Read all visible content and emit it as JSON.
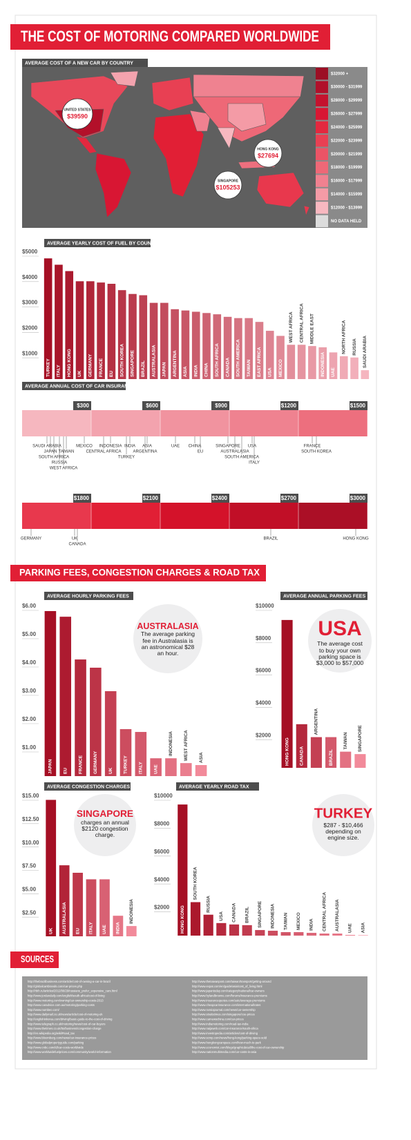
{
  "header": {
    "title": "THE COST OF MOTORING COMPARED WORLDWIDE"
  },
  "sections": {
    "parking": "PARKING FEES, CONGESTION CHARGES & ROAD TAX",
    "sources": "SOURCES"
  },
  "chart_data": [
    {
      "type": "map",
      "title": "AVERAGE COST OF A NEW CAR BY COUNTRY",
      "legend": [
        {
          "name": "$32000 +",
          "color": "#9c0f25"
        },
        {
          "name": "$30000 - $31999",
          "color": "#b0102a"
        },
        {
          "name": "$28000 - $29999",
          "color": "#c4122e"
        },
        {
          "name": "$26000 - $27999",
          "color": "#d81633"
        },
        {
          "name": "$24000 - $25999",
          "color": "#e3283f"
        },
        {
          "name": "$22000 - $23999",
          "color": "#e84053"
        },
        {
          "name": "$20000 - $21999",
          "color": "#eb5466"
        },
        {
          "name": "$18000 - $19999",
          "color": "#ee6877"
        },
        {
          "name": "$16000 - $17999",
          "color": "#f08190"
        },
        {
          "name": "$14000 - $15999",
          "color": "#f49ba6"
        },
        {
          "name": "$12000 - $13999",
          "color": "#f8b8c0"
        },
        {
          "name": "NO DATA HELD",
          "color": "#dcdcdc"
        }
      ],
      "callouts": [
        {
          "name": "UNITED STATES",
          "value": 39590,
          "label": "$39590"
        },
        {
          "name": "HONG KONG",
          "value": 27694,
          "label": "$27694"
        },
        {
          "name": "SINGAPORE",
          "value": 105253,
          "label": "$105253"
        }
      ]
    },
    {
      "type": "bar",
      "title": "AVERAGE YEARLY COST OF FUEL BY COUNTRY",
      "categories": [
        "TURKEY",
        "ITALY",
        "HONG KONG",
        "UK",
        "GERMANY",
        "FRANCE",
        "EU",
        "SOUTH KOREA",
        "SINGAPORE",
        "BRAZIL",
        "AUSTRALASIA",
        "JAPAN",
        "ARGENTINA",
        "ASIA",
        "INDIA",
        "CHINA",
        "SOUTH AFRICA",
        "CANADA",
        "SOUTH AMERICA",
        "TAIWAN",
        "EAST AFRICA",
        "USA",
        "MEXICO",
        "WEST AFRICA",
        "CENTRAL AFRICA",
        "MIDDLE EAST",
        "INDONESIA",
        "UAE",
        "NORTH AFRICA",
        "RUSSIA",
        "SAUDI ARABIA"
      ],
      "values": [
        4750,
        4500,
        4250,
        3850,
        3850,
        3800,
        3750,
        3500,
        3350,
        3300,
        3000,
        3000,
        2750,
        2700,
        2650,
        2600,
        2550,
        2450,
        2400,
        2400,
        2250,
        1900,
        1700,
        1350,
        1350,
        1300,
        1250,
        1050,
        900,
        850,
        350
      ],
      "color_from": "#a50f24",
      "color_to": "#f5b5bf",
      "ylim": [
        0,
        5000
      ],
      "yticks": [
        {
          "value": 1000,
          "label": "$1000"
        },
        {
          "value": 2000,
          "label": "$2000"
        },
        {
          "value": 3000,
          "label": "$3000"
        },
        {
          "value": 4000,
          "label": "$4000"
        },
        {
          "value": 5000,
          "label": "$5000"
        }
      ]
    },
    {
      "type": "strip",
      "title": "AVERAGE ANNUAL COST OF CAR INSURANCE",
      "xlim": [
        0,
        3000
      ],
      "xticks": [
        {
          "value": 300,
          "label": "$300"
        },
        {
          "value": 600,
          "label": "$600"
        },
        {
          "value": 900,
          "label": "$900"
        },
        {
          "value": 1200,
          "label": "$1200"
        },
        {
          "value": 1500,
          "label": "$1500"
        },
        {
          "value": 1800,
          "label": "$1800"
        },
        {
          "value": 2100,
          "label": "$2100"
        },
        {
          "value": 2400,
          "label": "$2400"
        },
        {
          "value": 2700,
          "label": "$2700"
        },
        {
          "value": 3000,
          "label": "$3000"
        }
      ],
      "band_colors": [
        "#f6b7bf",
        "#f3a3ae",
        "#f1939f",
        "#ef8290",
        "#ed6f7e",
        "#e8384d",
        "#e11f35",
        "#d4122a",
        "#c10f27",
        "#ab0f26"
      ],
      "points": [
        {
          "name": "SAUDI ARABIA",
          "value": 108
        },
        {
          "name": "JAPAN",
          "value": 123
        },
        {
          "name": "SOUTH AFRICA",
          "value": 138
        },
        {
          "name": "RUSSIA",
          "value": 162
        },
        {
          "name": "WEST AFRICA",
          "value": 180
        },
        {
          "name": "TAIWAN",
          "value": 192
        },
        {
          "name": "MEXICO",
          "value": 270
        },
        {
          "name": "CENTRAL AFRICA",
          "value": 354
        },
        {
          "name": "INDONESIA",
          "value": 384
        },
        {
          "name": "TURKEY",
          "value": 453
        },
        {
          "name": "INDIA",
          "value": 468
        },
        {
          "name": "ARGENTINA",
          "value": 534
        },
        {
          "name": "ASIA",
          "value": 543
        },
        {
          "name": "UAE",
          "value": 666
        },
        {
          "name": "CHINA",
          "value": 750
        },
        {
          "name": "EU",
          "value": 774
        },
        {
          "name": "SINGAPORE",
          "value": 894
        },
        {
          "name": "AUSTRALASIA",
          "value": 924
        },
        {
          "name": "SOUTH AMERICA",
          "value": 954
        },
        {
          "name": "USA",
          "value": 999
        },
        {
          "name": "ITALY",
          "value": 1008
        },
        {
          "name": "FRANCE",
          "value": 1260
        },
        {
          "name": "SOUTH KOREA",
          "value": 1278
        },
        {
          "name": "GERMANY",
          "value": 1539
        },
        {
          "name": "UK",
          "value": 1728
        },
        {
          "name": "CANADA",
          "value": 1740
        },
        {
          "name": "BRAZIL",
          "value": 2580
        },
        {
          "name": "HONG KONG",
          "value": 2949
        }
      ]
    },
    {
      "type": "bar",
      "title": "AVERAGE HOURLY PARKING FEES",
      "categories": [
        "JAPAN",
        "EU",
        "FRANCE",
        "GERMANY",
        "UK",
        "TURKEY",
        "ITALY",
        "UAE",
        "INDONESIA",
        "WEST AFRICA",
        "ASIA"
      ],
      "values": [
        5.83,
        5.63,
        4.12,
        3.83,
        3.0,
        1.66,
        1.56,
        0.63,
        0.63,
        0.46,
        0.39
      ],
      "color_from": "#a50f24",
      "color_to": "#f28a9a",
      "ylim": [
        0,
        6
      ],
      "yticks": [
        {
          "value": 1,
          "label": "$1.00"
        },
        {
          "value": 2,
          "label": "$2.00"
        },
        {
          "value": 3,
          "label": "$3.00"
        },
        {
          "value": 4,
          "label": "$4.00"
        },
        {
          "value": 5,
          "label": "$5.00"
        },
        {
          "value": 6,
          "label": "$6.00"
        }
      ],
      "annotation": {
        "heading": "AUSTRALASIA",
        "text": "The average parking fee in Australasia is an astronomical $28 an hour."
      }
    },
    {
      "type": "bar",
      "title": "AVERAGE ANNUAL PARKING FEES",
      "categories": [
        "HONG KONG",
        "CANADA",
        "ARGENTINA",
        "BRAZIL",
        "TAIWAN",
        "SINGAPORE"
      ],
      "values": [
        9150,
        2700,
        1900,
        1900,
        1000,
        850
      ],
      "color_from": "#a50f24",
      "color_to": "#f28a9a",
      "ylim": [
        0,
        10000
      ],
      "yticks": [
        {
          "value": 2000,
          "label": "$2000"
        },
        {
          "value": 4000,
          "label": "$4000"
        },
        {
          "value": 6000,
          "label": "$6000"
        },
        {
          "value": 8000,
          "label": "$8000"
        },
        {
          "value": 10000,
          "label": "$10000"
        }
      ],
      "annotation": {
        "heading": "USA",
        "text": "The average cost to buy your own parking space is $3,000 to $57,000"
      }
    },
    {
      "type": "bar",
      "title": "AVERAGE CONGESTION CHARGES",
      "categories": [
        "UK",
        "AUSTRALASIA",
        "EU",
        "ITALY",
        "UAE",
        "INDIA",
        "INDONESIA"
      ],
      "values": [
        14.6,
        7.6,
        6.8,
        6.1,
        6.1,
        2.2,
        1.1
      ],
      "color_from": "#a50f24",
      "color_to": "#f28a9a",
      "ylim": [
        0,
        15
      ],
      "yticks": [
        {
          "value": 2.5,
          "label": "$2.50"
        },
        {
          "value": 5,
          "label": "$5.00"
        },
        {
          "value": 7.5,
          "label": "$7.50"
        },
        {
          "value": 10,
          "label": "$10.00"
        },
        {
          "value": 12.5,
          "label": "$12.50"
        },
        {
          "value": 15,
          "label": "$15.00"
        }
      ],
      "annotation": {
        "heading": "SINGAPORE",
        "text": "charges an annual $2120 congestion charge."
      }
    },
    {
      "type": "bar",
      "title": "AVERAGE YEARLY ROAD TAX",
      "categories": [
        "HONG KONG",
        "SOUTH KOREA",
        "RUSSIA",
        "USA",
        "CANADA",
        "BRAZIL",
        "SINGAPORE",
        "INDONESIA",
        "TAIWAN",
        "MEXICO",
        "INDIA",
        "CENTRAL AFRICA",
        "AUSTRALASIA",
        "UAE",
        "ASIA"
      ],
      "values": [
        9400,
        2400,
        1500,
        900,
        800,
        750,
        400,
        350,
        250,
        250,
        200,
        150,
        150,
        50,
        30
      ],
      "color_from": "#a50f24",
      "color_to": "#f28a9a",
      "ylim": [
        0,
        10000
      ],
      "yticks": [
        {
          "value": 2000,
          "label": "$2000"
        },
        {
          "value": 4000,
          "label": "$4000"
        },
        {
          "value": 6000,
          "label": "$6000"
        },
        {
          "value": 8000,
          "label": "$8000"
        },
        {
          "value": 10000,
          "label": "$10000"
        }
      ],
      "annotation": {
        "heading": "TURKEY",
        "text": "$287 - $10,466 depending on engine size."
      }
    }
  ],
  "sources": [
    [
      "http://thebrazilbusiness.com/article/cost-of-owning-a-car-in-brazil",
      "http://globalcarsbrands.com/car-prices.php",
      "http://rbth.ru/articles/2012/06/29/russians_prefer_expensive_cars.html",
      "http://www.jordandaily.com/english/south-africa/cost-of-living",
      "http://www.motoring.com/owning/car-ownership-costs-2013",
      "http://www.caradvice.com.au/motoring/parking-costs",
      "http://www.numbeo.com/",
      "http://www.dailymail.co.uk/news/article/cost-of-motoring-uk",
      "http://englishinkorea.com/driving/basic-guide-to-the-cost-of-driving",
      "http://www.telegraph.co.uk/motoring/news/cost-of-car-buyers",
      "http://www.thetimes.co.uk/tto/business/congestion-charge",
      "http://en.wikipedia.org/wiki/Road_tax",
      "http://www.bloomberg.com/news/car-insurance-prices",
      "http://www.globalpropertyguide.com/parking",
      "http://www.cnbc.com/id/car-costs-worldwide",
      "http://www.worldwidefuelprices.com/community/world-information"
    ],
    [
      "http://www.thetaiwanpost.com/taiwan/transport/getting-around",
      "http://www.expat.com/en/guide/asia/cost_of_living.html",
      "http://www.japantoday.com/category/national/car-owners",
      "http://www.hylandbrowne.com/forums/insurance-premiums",
      "http://www.insurancequotes.com/auto/average-premiums",
      "http://www.cheapcarinsurance.com/international/rates",
      "http://www.russiajournal.com/news/car-ownership",
      "http://www.straitstimes.com/singapore/coe-prices",
      "http://www.carnewschina.com/car-prices",
      "http://www.indiamotoring.com/road-tax-india",
      "http://www.naijaweb.com/car-insurance/south-africa",
      "http://www.investopedia.com/articles/cost-of-driving",
      "http://www.scmp.com/news/hong-kong/parking-space-sold",
      "http://www.hongkongcarspace.com/how-much-to-park",
      "http://www.economist.com/blogs/graphicdetail/the-cost-of-car-ownership",
      "http://www.nationmultimedia.com/car-costs-in-asia"
    ]
  ]
}
